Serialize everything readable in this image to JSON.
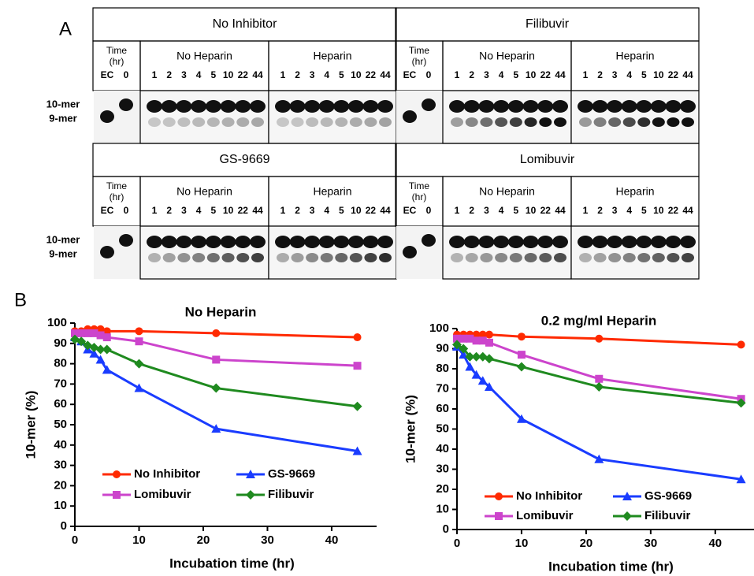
{
  "panel_a": {
    "label": "A",
    "row_labels": [
      "10-mer",
      "9-mer"
    ],
    "time_labels": {
      "time": "Time",
      "unit": "(hr)",
      "ec": "EC",
      "zero": "0"
    },
    "lanes": [
      "1",
      "2",
      "3",
      "4",
      "5",
      "10",
      "22",
      "44"
    ],
    "conditions": [
      "No Heparin",
      "Heparin"
    ],
    "blocks": [
      {
        "title": "No Inhibitor"
      },
      {
        "title": "Filibuvir"
      },
      {
        "title": "GS-9669"
      },
      {
        "title": "Lomibuvir"
      }
    ]
  },
  "panel_b": {
    "label": "B"
  },
  "chart_data": [
    {
      "type": "line",
      "title": "No Heparin",
      "xlabel": "Incubation time (hr)",
      "ylabel": "10-mer (%)",
      "x": [
        0,
        1,
        2,
        3,
        4,
        5,
        10,
        22,
        44
      ],
      "xlim": [
        0,
        47
      ],
      "ylim": [
        0,
        100
      ],
      "xticks": [
        0,
        10,
        20,
        30,
        40
      ],
      "yticks": [
        0,
        10,
        20,
        30,
        40,
        50,
        60,
        70,
        80,
        90,
        100
      ],
      "legend": "lower left",
      "series": [
        {
          "name": "No Inhibitor",
          "color": "#ff2a00",
          "marker": "circle",
          "values": [
            96,
            96,
            97,
            97,
            97,
            96,
            96,
            95,
            93
          ]
        },
        {
          "name": "GS-9669",
          "color": "#1a3cff",
          "marker": "triangle",
          "values": [
            93,
            91,
            87,
            85,
            82,
            77,
            68,
            48,
            37
          ]
        },
        {
          "name": "Lomibuvir",
          "color": "#cc44cc",
          "marker": "square",
          "values": [
            95,
            95,
            95,
            95,
            94,
            93,
            91,
            82,
            79
          ]
        },
        {
          "name": "Filibuvir",
          "color": "#1f8a1f",
          "marker": "diamond",
          "values": [
            92,
            91,
            89,
            88,
            87,
            87,
            80,
            68,
            59
          ]
        }
      ]
    },
    {
      "type": "line",
      "title": "0.2 mg/ml Heparin",
      "xlabel": "Incubation time (hr)",
      "ylabel": "10-mer (%)",
      "x": [
        0,
        1,
        2,
        3,
        4,
        5,
        10,
        22,
        44
      ],
      "xlim": [
        0,
        46
      ],
      "ylim": [
        0,
        100
      ],
      "xticks": [
        0,
        10,
        20,
        30,
        40
      ],
      "yticks": [
        0,
        10,
        20,
        30,
        40,
        50,
        60,
        70,
        80,
        90,
        100
      ],
      "legend": "lower left",
      "series": [
        {
          "name": "No Inhibitor",
          "color": "#ff2a00",
          "marker": "circle",
          "values": [
            97,
            97,
            97,
            97,
            97,
            97,
            96,
            95,
            92
          ]
        },
        {
          "name": "GS-9669",
          "color": "#1a3cff",
          "marker": "triangle",
          "values": [
            91,
            87,
            81,
            77,
            74,
            71,
            55,
            35,
            25
          ]
        },
        {
          "name": "Lomibuvir",
          "color": "#cc44cc",
          "marker": "square",
          "values": [
            95,
            95,
            95,
            94,
            94,
            93,
            87,
            75,
            65
          ]
        },
        {
          "name": "Filibuvir",
          "color": "#1f8a1f",
          "marker": "diamond",
          "values": [
            92,
            90,
            86,
            86,
            86,
            85,
            81,
            71,
            63
          ]
        }
      ]
    }
  ]
}
